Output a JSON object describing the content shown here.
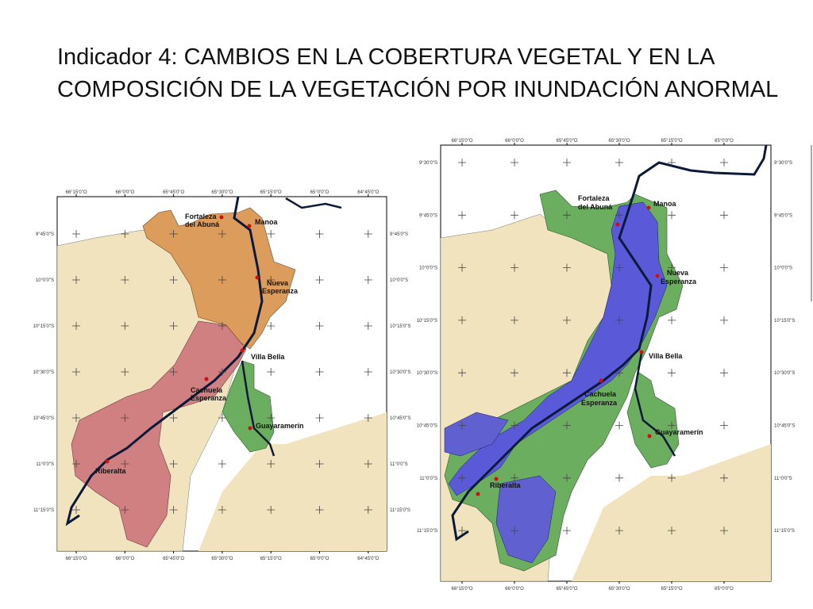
{
  "slide": {
    "title_line1": "Indicador 4: CAMBIOS EN LA COBERTURA VEGETAL Y EN LA",
    "title_line2": "COMPOSICIÓN DE LA VEGETACIÓN POR INUNDACIÓN ANORMAL"
  },
  "colors": {
    "land": "#f0e3bd",
    "river": "#0b1a3a",
    "orange": "#dc9c5c",
    "pink": "#d08080",
    "green": "#6cae60",
    "blue": "#5a5ad8",
    "town": "#cc1111"
  },
  "maps": [
    {
      "name": "left-map",
      "longitudes": [
        "66°15'0\"O",
        "66°0'0\"O",
        "65°45'0\"O",
        "65°30'0\"O",
        "65°15'0\"O",
        "65°0'0\"O",
        "64°45'0\"O"
      ],
      "latitudes": [
        "9°45'0\"S",
        "10°0'0\"S",
        "10°15'0\"S",
        "10°30'0\"S",
        "10°45'0\"S",
        "11°0'0\"S",
        "11°15'0\"S"
      ],
      "places": [
        "Fortaleza",
        "del Abuná",
        "Manoa",
        "Nueva",
        "Esperanza",
        "Villa Bella",
        "Cachuela",
        "Esperanza",
        "Guayaramerín",
        "Riberalta"
      ]
    },
    {
      "name": "right-map",
      "longitudes": [
        "66°15'0\"O",
        "66°0'0\"O",
        "65°45'0\"O",
        "65°30'0\"O",
        "65°15'0\"O",
        "65°0'0\"O"
      ],
      "latitudes": [
        "9°30'0\"S",
        "9°45'0\"S",
        "10°0'0\"S",
        "10°15'0\"S",
        "10°30'0\"S",
        "10°45'0\"S",
        "11°0'0\"S",
        "11°15'0\"S"
      ],
      "places": [
        "Fortaleza",
        "del Abuná",
        "Manoa",
        "Nueva",
        "Esperanza",
        "Villa Bella",
        "Cachuela",
        "Esperanza",
        "Guayaramerín",
        "Riberalta"
      ]
    }
  ]
}
